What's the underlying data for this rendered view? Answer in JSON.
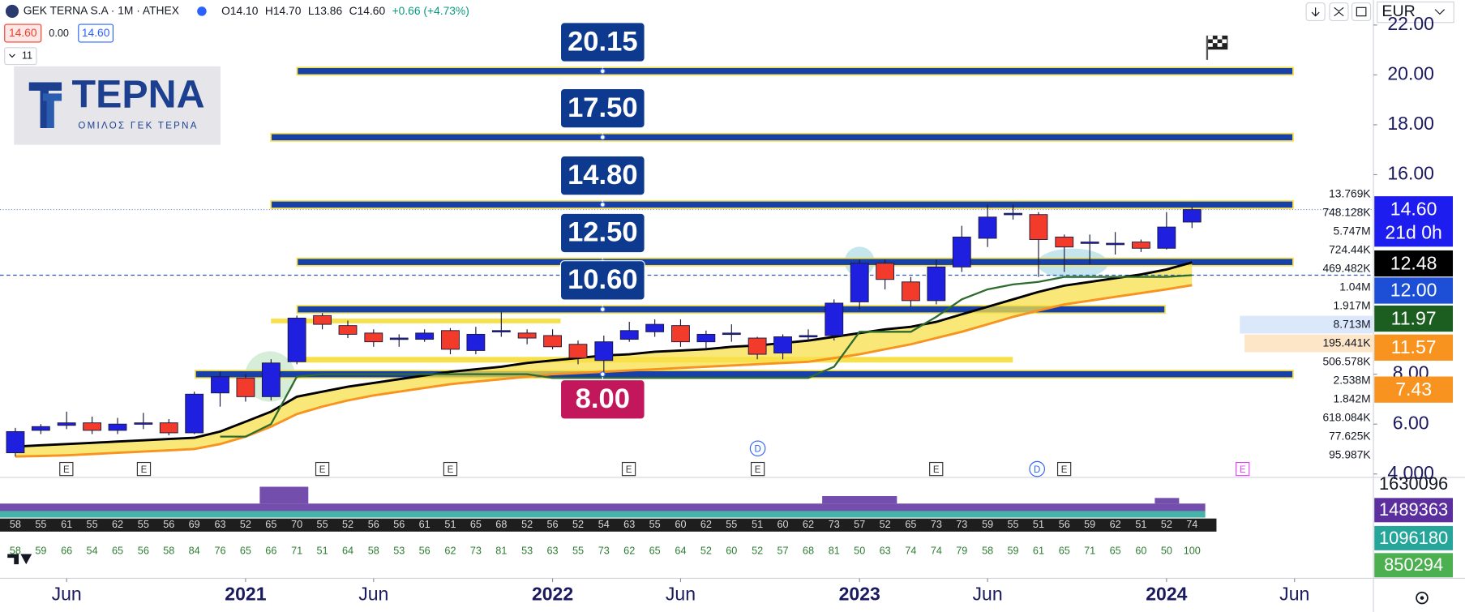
{
  "header": {
    "symbol": "GEK TERNA S.A · 1M · ATHEX",
    "open": "O14.10",
    "high": "H14.70",
    "low": "L13.86",
    "close": "C14.60",
    "change": "+0.66 (+4.73%)",
    "bid": "14.60",
    "spread": "0.00",
    "ask": "14.60",
    "indicators": "11",
    "currency": "EUR"
  },
  "logo": {
    "name": "ΤΕΡΝΑ",
    "subtitle": "ΟΜΙΛΟΣ ΓΕΚ ΤΕΡΝΑ"
  },
  "chart_data": {
    "type": "candlestick",
    "x": [
      2020.25,
      2020.333,
      2020.417,
      2020.5,
      2020.583,
      2020.667,
      2020.75,
      2020.833,
      2020.917,
      2021,
      2021.083,
      2021.167,
      2021.25,
      2021.333,
      2021.417,
      2021.5,
      2021.583,
      2021.667,
      2021.75,
      2021.833,
      2021.917,
      2022,
      2022.083,
      2022.167,
      2022.25,
      2022.333,
      2022.417,
      2022.5,
      2022.583,
      2022.667,
      2022.75,
      2022.833,
      2022.917,
      2023,
      2023.083,
      2023.167,
      2023.25,
      2023.333,
      2023.417,
      2023.5,
      2023.583,
      2023.667,
      2023.75,
      2023.833,
      2023.917,
      2024,
      2024.083
    ],
    "open": [
      4.85,
      5.75,
      5.95,
      6.05,
      5.75,
      6.0,
      6.05,
      5.65,
      7.25,
      7.85,
      7.1,
      8.5,
      10.35,
      9.95,
      9.65,
      9.45,
      9.4,
      9.75,
      8.95,
      9.7,
      9.65,
      9.55,
      9.2,
      8.55,
      9.4,
      9.7,
      9.95,
      9.3,
      9.6,
      9.45,
      8.85,
      9.5,
      9.55,
      10.9,
      12.45,
      11.7,
      10.95,
      12.3,
      13.45,
      14.4,
      14.4,
      13.5,
      13.25,
      13.25,
      13.3,
      13.05,
      14.1
    ],
    "high": [
      5.85,
      6.0,
      6.5,
      6.3,
      6.25,
      6.45,
      6.2,
      7.3,
      8.1,
      8.0,
      8.6,
      10.35,
      10.45,
      10.15,
      9.8,
      9.6,
      9.8,
      9.85,
      9.9,
      10.5,
      9.8,
      9.8,
      9.35,
      9.55,
      10.1,
      10.2,
      10.2,
      9.75,
      10.0,
      9.5,
      9.6,
      9.8,
      11.0,
      12.6,
      12.6,
      11.9,
      12.6,
      13.95,
      14.8,
      14.8,
      14.5,
      13.6,
      13.6,
      13.7,
      13.4,
      14.5,
      14.7
    ],
    "low": [
      4.7,
      5.6,
      5.8,
      5.6,
      5.6,
      5.8,
      5.55,
      5.6,
      6.7,
      6.9,
      6.95,
      8.4,
      9.8,
      9.45,
      9.1,
      9.1,
      9.3,
      8.8,
      8.8,
      9.5,
      9.2,
      9.0,
      8.4,
      8.0,
      9.3,
      9.5,
      9.1,
      9.0,
      9.3,
      8.6,
      8.6,
      9.3,
      9.35,
      10.6,
      11.4,
      10.7,
      10.8,
      12.1,
      13.1,
      14.2,
      11.9,
      12.1,
      12.4,
      12.8,
      12.9,
      13.0,
      13.86
    ],
    "close": [
      5.7,
      5.9,
      6.05,
      5.75,
      6.0,
      6.05,
      5.65,
      7.2,
      7.9,
      7.1,
      8.45,
      10.25,
      10.0,
      9.6,
      9.3,
      9.45,
      9.65,
      9.0,
      9.6,
      9.75,
      9.45,
      9.1,
      8.65,
      9.3,
      9.75,
      10.0,
      9.3,
      9.6,
      9.65,
      8.8,
      9.5,
      9.55,
      10.85,
      12.45,
      11.8,
      10.95,
      12.3,
      13.5,
      14.3,
      14.45,
      13.4,
      13.1,
      13.3,
      13.25,
      13.05,
      13.9,
      14.6
    ],
    "up_color": "#1f1fe0",
    "down_color": "#f23b2a",
    "series": [
      {
        "color": "#000000",
        "values": [
          5.1,
          5.15,
          5.2,
          5.25,
          5.3,
          5.35,
          5.4,
          5.45,
          5.7,
          6.1,
          6.5,
          7.1,
          7.3,
          7.5,
          7.65,
          7.8,
          7.95,
          8.1,
          8.2,
          8.3,
          8.45,
          8.55,
          8.65,
          8.75,
          8.8,
          8.9,
          8.95,
          9.0,
          9.1,
          9.15,
          9.25,
          9.35,
          9.5,
          9.65,
          9.8,
          9.9,
          10.1,
          10.4,
          10.7,
          11.0,
          11.3,
          11.55,
          11.7,
          11.85,
          12.0,
          12.2,
          12.48
        ]
      },
      {
        "color": "#f7931e",
        "values": [
          4.7,
          4.72,
          4.75,
          4.8,
          4.85,
          4.9,
          4.95,
          5.0,
          5.2,
          5.5,
          5.9,
          6.4,
          6.7,
          6.95,
          7.15,
          7.3,
          7.45,
          7.6,
          7.7,
          7.8,
          7.9,
          8.0,
          8.05,
          8.1,
          8.15,
          8.2,
          8.25,
          8.3,
          8.35,
          8.4,
          8.45,
          8.5,
          8.65,
          8.8,
          9.0,
          9.2,
          9.45,
          9.7,
          10.0,
          10.3,
          10.55,
          10.8,
          10.95,
          11.1,
          11.25,
          11.4,
          11.57
        ]
      },
      {
        "color": "#2e6b2e",
        "values": [
          null,
          null,
          null,
          null,
          null,
          null,
          null,
          null,
          5.5,
          5.5,
          6.0,
          7.9,
          8.0,
          8.0,
          8.0,
          8.0,
          8.0,
          8.0,
          8.0,
          8.0,
          8.0,
          7.85,
          7.85,
          7.85,
          7.85,
          7.85,
          7.85,
          7.85,
          7.85,
          7.85,
          7.85,
          7.85,
          8.3,
          9.7,
          9.7,
          9.7,
          10.3,
          11.0,
          11.4,
          11.6,
          11.7,
          11.9,
          11.9,
          11.9,
          11.9,
          11.9,
          11.97
        ]
      }
    ],
    "levels": [
      {
        "value": 20.15,
        "label": "20.15",
        "color": "#0d3a8e",
        "label_position": "above"
      },
      {
        "value": 17.5,
        "label": "17.50",
        "color": "#0d3a8e",
        "label_position": "above"
      },
      {
        "value": 14.8,
        "label": "14.80",
        "color": "#0d3a8e",
        "label_position": "above"
      },
      {
        "value": 12.5,
        "label": "12.50",
        "color": "#0d3a8e",
        "label_position": "above"
      },
      {
        "value": 10.6,
        "label": "10.60",
        "color": "#0d3a8e",
        "label_position": "above"
      },
      {
        "value": 8,
        "label": "8.00",
        "color": "#c2185b",
        "label_position": "below"
      }
    ],
    "xlim": [
      2020.2,
      2024.674
    ],
    "xticks": [
      {
        "value": 2020.417,
        "label": "Jun"
      },
      {
        "value": 2021,
        "label": "2021"
      },
      {
        "value": 2021.417,
        "label": "Jun"
      },
      {
        "value": 2022,
        "label": "2022"
      },
      {
        "value": 2022.417,
        "label": "Jun"
      },
      {
        "value": 2023,
        "label": "2023"
      },
      {
        "value": 2023.417,
        "label": "Jun"
      },
      {
        "value": 2024,
        "label": "2024"
      },
      {
        "value": 2024.417,
        "label": "Jun"
      }
    ],
    "ylim": [
      3.9,
      23
    ],
    "yticks": [
      {
        "value": 22,
        "label": "22.00"
      },
      {
        "value": 20,
        "label": "20.00"
      },
      {
        "value": 18,
        "label": "18.00"
      },
      {
        "value": 16,
        "label": "16.00"
      },
      {
        "value": 8,
        "label": "8.00"
      },
      {
        "value": 6,
        "label": "6.00"
      },
      {
        "value": 4,
        "label": "4.000"
      }
    ],
    "grid": false
  },
  "price_scale": {
    "badges": [
      {
        "label": "14.60",
        "sub": "21d 0h",
        "color": "#1d1df0"
      },
      {
        "label": "12.48",
        "color": "#000000"
      },
      {
        "label": "12.00",
        "color": "#1c4fd6"
      },
      {
        "label": "11.97",
        "color": "#1b5e20"
      },
      {
        "label": "11.57",
        "color": "#f7931e"
      },
      {
        "label": "7.43",
        "color": "#f7931e"
      }
    ],
    "volume_profile": [
      "13.769K",
      "748.128K",
      "5.747M",
      "724.44K",
      "469.482K",
      "1.04M",
      "1.917M",
      "8.713M",
      "195.441K",
      "506.578K",
      "2.538M",
      "1.842M",
      "618.084K",
      "77.625K",
      "95.987K"
    ]
  },
  "events": [
    "E",
    "E",
    "E",
    "E",
    "E",
    "E",
    "E",
    "E",
    "E",
    "D",
    "D"
  ],
  "oscillator": {
    "row1": [
      58,
      55,
      61,
      55,
      62,
      55,
      56,
      69,
      63,
      52,
      65,
      70,
      55,
      52,
      56,
      56,
      61,
      51,
      65,
      68,
      52,
      56,
      52,
      54,
      63,
      55,
      60,
      62,
      55,
      51,
      60,
      62,
      73,
      57,
      52,
      65,
      73,
      73,
      59,
      55,
      51,
      56,
      59,
      62,
      51,
      52,
      74
    ],
    "row2": [
      58,
      59,
      66,
      54,
      65,
      56,
      58,
      84,
      76,
      65,
      66,
      71,
      51,
      64,
      58,
      53,
      56,
      62,
      73,
      81,
      53,
      63,
      55,
      73,
      62,
      65,
      64,
      52,
      60,
      52,
      57,
      68,
      81,
      50,
      63,
      74,
      74,
      79,
      58,
      59,
      61,
      65,
      71,
      65,
      60,
      50,
      100
    ],
    "scale_labels": [
      {
        "label": "1630096",
        "color": "#ffffff"
      },
      {
        "label": "1489363",
        "color": "#5b2f9e"
      },
      {
        "label": "1096180",
        "color": "#26a69a"
      },
      {
        "label": "850294",
        "color": "#4caf50"
      }
    ]
  }
}
